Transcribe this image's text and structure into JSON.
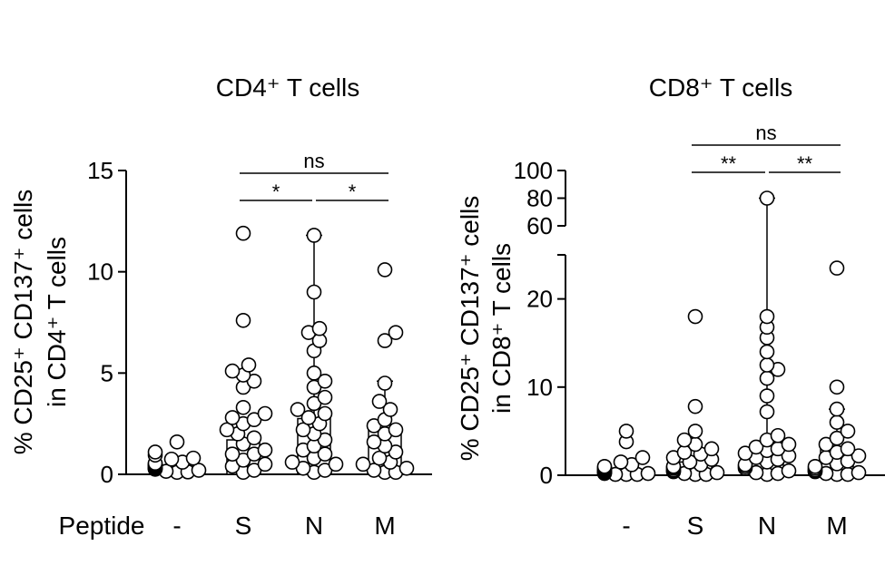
{
  "figure": {
    "x_row_label": "Peptide"
  },
  "chart_data": [
    {
      "type": "scatter",
      "title": "CD4⁺ T cells",
      "ylabel_line1": "% CD25⁺ CD137⁺ cells",
      "ylabel_line2": "in CD4⁺ T cells",
      "categories": [
        "-",
        "S",
        "N",
        "M"
      ],
      "ylim": [
        0,
        15
      ],
      "yticks": [
        0,
        5,
        10,
        15
      ],
      "bar_values": [
        0.4,
        1.7,
        2.75,
        2.2
      ],
      "error_bar_top": [
        null,
        null,
        11.8,
        4.6
      ],
      "points": [
        [
          1.6,
          1.1,
          0.95,
          0.8,
          0.75,
          0.6,
          0.55,
          0.5,
          0.45,
          0.4,
          0.35,
          0.3,
          0.28,
          0.25,
          0.2,
          0.15,
          0.12,
          0.1,
          0.3,
          0.45
        ],
        [
          11.9,
          7.6,
          5.4,
          5.1,
          4.9,
          4.6,
          4.3,
          3.3,
          3.0,
          2.8,
          2.7,
          2.5,
          2.2,
          2.0,
          1.8,
          1.5,
          1.2,
          1.0,
          1.0,
          0.7,
          0.5,
          0.4,
          0.2,
          0.1
        ],
        [
          11.8,
          9.0,
          7.2,
          7.0,
          6.6,
          6.1,
          5.0,
          4.6,
          4.3,
          3.8,
          3.5,
          3.2,
          3.0,
          2.8,
          2.5,
          2.2,
          2.0,
          1.7,
          1.4,
          1.2,
          1.0,
          0.8,
          0.6,
          0.5,
          0.3,
          0.2,
          0.1
        ],
        [
          10.1,
          7.0,
          6.6,
          4.5,
          3.6,
          3.2,
          2.7,
          2.4,
          2.2,
          2.0,
          1.6,
          1.4,
          1.1,
          0.8,
          0.6,
          0.5,
          0.3,
          0.2,
          0.1,
          0.1
        ]
      ],
      "significance": [
        {
          "from": "S",
          "to": "M",
          "label": "ns",
          "level": 2
        },
        {
          "from": "S",
          "to": "N",
          "label": "*",
          "level": 1
        },
        {
          "from": "N",
          "to": "M",
          "label": "*",
          "level": 1
        }
      ]
    },
    {
      "type": "scatter",
      "title": "CD8⁺ T cells",
      "ylabel_line1": "% CD25⁺ CD137⁺ cells",
      "ylabel_line2": "in CD8⁺ T cells",
      "categories": [
        "-",
        "S",
        "N",
        "M"
      ],
      "axis_break": true,
      "ylim_lower": [
        0,
        25
      ],
      "yticks_lower": [
        0,
        10,
        20
      ],
      "ylim_upper": [
        60,
        100
      ],
      "yticks_upper": [
        60,
        80,
        100
      ],
      "bar_values": [
        0.6,
        1.5,
        3.0,
        2.9
      ],
      "error_bar_top": [
        null,
        null,
        80,
        7.5
      ],
      "points": [
        [
          5.0,
          3.8,
          2.0,
          1.5,
          1.2,
          1.0,
          0.9,
          0.8,
          0.7,
          0.6,
          0.5,
          0.4,
          0.4,
          0.3,
          0.3,
          0.2,
          0.2,
          0.1,
          0.1,
          0.1
        ],
        [
          18.0,
          7.8,
          5.0,
          4.0,
          3.5,
          3.0,
          2.6,
          2.4,
          2.0,
          1.8,
          1.5,
          1.2,
          1.0,
          0.9,
          0.8,
          0.6,
          0.5,
          0.4,
          0.3,
          0.2,
          0.1,
          0.1
        ],
        [
          80,
          18.0,
          16.8,
          15.6,
          14.0,
          12.5,
          12.0,
          11.0,
          9.0,
          7.2,
          4.5,
          4.0,
          3.5,
          3.2,
          3.0,
          2.8,
          2.5,
          2.2,
          2.0,
          1.8,
          1.5,
          1.2,
          1.0,
          0.8,
          0.5,
          0.3,
          0.2,
          0.1
        ],
        [
          23.5,
          10.0,
          7.5,
          6.0,
          5.0,
          4.2,
          3.5,
          3.0,
          2.6,
          2.2,
          2.0,
          1.6,
          1.3,
          1.0,
          0.8,
          0.6,
          0.5,
          0.4,
          0.3,
          0.2,
          0.1,
          0.1
        ]
      ],
      "significance": [
        {
          "from": "S",
          "to": "M",
          "label": "ns",
          "level": 2
        },
        {
          "from": "S",
          "to": "N",
          "label": "**",
          "level": 1
        },
        {
          "from": "N",
          "to": "M",
          "label": "**",
          "level": 1
        }
      ]
    }
  ]
}
